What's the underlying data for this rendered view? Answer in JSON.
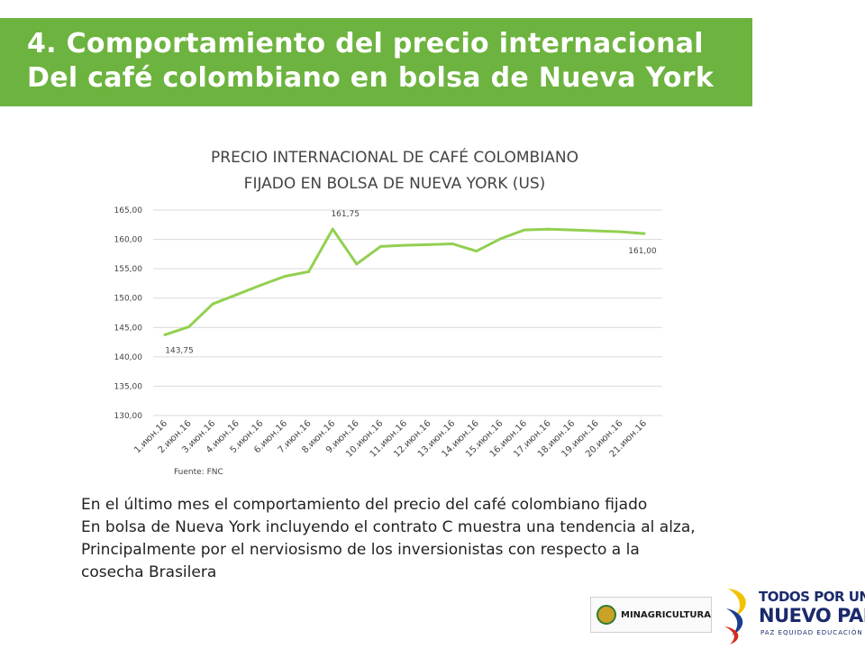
{
  "header": {
    "title_line1": "4. Comportamiento del precio internacional",
    "title_line2": "Del café colombiano en bolsa de Nueva York"
  },
  "chart_data": {
    "type": "line",
    "title_line1": "PRECIO INTERNACIONAL DE CAFÉ COLOMBIANO",
    "title_line2": "FIJADO EN BOLSA DE NUEVA YORK (US)",
    "categories": [
      "1.июн.16",
      "2.июн.16",
      "3.июн.16",
      "4.июн.16",
      "5.июн.16",
      "6.июн.16",
      "7.июн.16",
      "8.июн.16",
      "9.июн.16",
      "10.июн.16",
      "11.июн.16",
      "12.июн.16",
      "13.июн.16",
      "14.июн.16",
      "15.июн.16",
      "16.июн.16",
      "17.июн.16",
      "18.июн.16",
      "19.июн.16",
      "20.июн.16",
      "21.июн.16"
    ],
    "series": [
      {
        "values": [
          143.75,
          145.1,
          149.0,
          150.6,
          152.2,
          153.7,
          154.5,
          161.75,
          155.8,
          158.8,
          159.0,
          159.1,
          159.25,
          158.0,
          160.1,
          161.6,
          161.75,
          161.6,
          161.45,
          161.3,
          161.0
        ],
        "color": "#92d050"
      }
    ],
    "y_ticks": [
      "130,00",
      "135,00",
      "140,00",
      "145,00",
      "150,00",
      "155,00",
      "160,00",
      "165,00"
    ],
    "ylim": [
      130,
      165
    ],
    "data_labels": [
      {
        "index": 0,
        "text": "143,75"
      },
      {
        "index": 7,
        "text": "161,75"
      },
      {
        "index": 20,
        "text": "161,00"
      }
    ],
    "grid": true,
    "legend": "none",
    "source": "Fuente: FNC"
  },
  "body_text": {
    "line1": "En el último mes el comportamiento del precio del café colombiano fijado",
    "line2": "En bolsa de Nueva York incluyendo el contrato C muestra una tendencia al alza,",
    "line3": "Principalmente por el nerviosismo de los inversionistas con respecto a la",
    "line4": "cosecha Brasilera"
  },
  "footer": {
    "ministry_logo_text": "MINAGRICULTURA",
    "slogan_line1": "TODOS POR UN",
    "slogan_line2": "NUEVO PAÍS",
    "slogan_line3": "PAZ  EQUIDAD  EDUCACIÓN"
  }
}
